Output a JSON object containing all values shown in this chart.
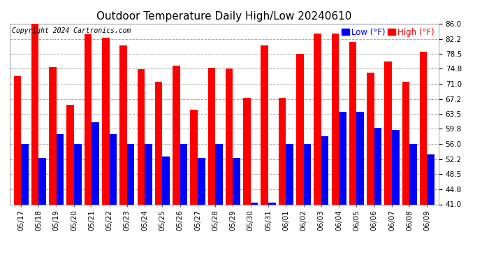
{
  "title": "Outdoor Temperature Daily High/Low 20240610",
  "copyright": "Copyright 2024 Cartronics.com",
  "dates": [
    "05/17",
    "05/18",
    "05/19",
    "05/20",
    "05/21",
    "05/22",
    "05/23",
    "05/24",
    "05/25",
    "05/26",
    "05/27",
    "05/28",
    "05/29",
    "05/30",
    "05/31",
    "06/01",
    "06/02",
    "06/03",
    "06/04",
    "06/05",
    "06/06",
    "06/07",
    "06/08",
    "06/09"
  ],
  "highs": [
    73.0,
    86.0,
    75.2,
    65.8,
    83.3,
    82.4,
    80.6,
    74.6,
    71.5,
    75.5,
    64.5,
    75.0,
    74.9,
    67.5,
    80.5,
    67.5,
    78.5,
    83.5,
    83.5,
    81.5,
    73.8,
    76.5,
    71.5,
    79.0
  ],
  "lows": [
    56.0,
    52.5,
    58.5,
    56.0,
    61.5,
    58.5,
    56.0,
    56.0,
    53.0,
    56.0,
    52.5,
    56.0,
    52.5,
    41.5,
    41.5,
    56.0,
    56.0,
    58.0,
    64.0,
    64.0,
    60.0,
    59.5,
    56.0,
    53.5
  ],
  "ylim_min": 41.0,
  "ylim_max": 86.0,
  "yticks": [
    41.0,
    44.8,
    48.5,
    52.2,
    56.0,
    59.8,
    63.5,
    67.2,
    71.0,
    74.8,
    78.5,
    82.2,
    86.0
  ],
  "bar_color_high": "#ff0000",
  "bar_color_low": "#0000ff",
  "bg_color": "#ffffff",
  "grid_color": "#aaaaaa",
  "title_fontsize": 11,
  "tick_fontsize": 7.5,
  "copyright_fontsize": 7,
  "legend_fontsize": 8.5,
  "bar_width": 0.42
}
